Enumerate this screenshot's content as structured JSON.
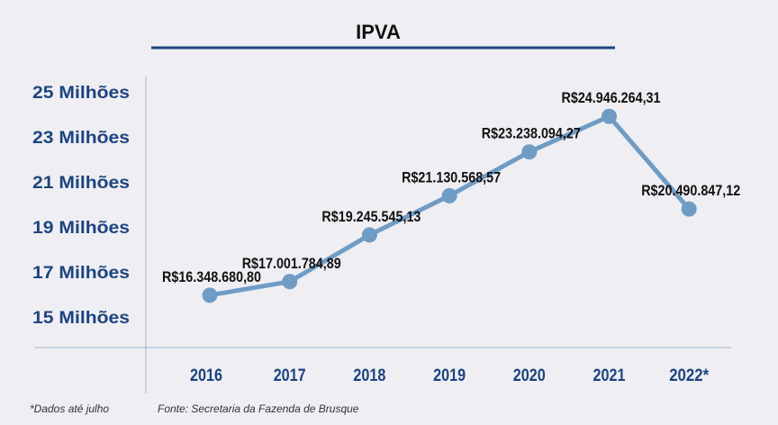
{
  "chart_data": {
    "type": "line",
    "title": "IPVA",
    "xlabel": "",
    "ylabel": "",
    "categories": [
      "2016",
      "2017",
      "2018",
      "2019",
      "2020",
      "2021",
      "2022*"
    ],
    "series": [
      {
        "name": "IPVA",
        "values": [
          16348680.8,
          17001784.89,
          19245545.13,
          21130568.57,
          23238094.27,
          24946264.31,
          20490847.12
        ]
      }
    ],
    "data_labels": [
      "R$16.348.680,80",
      "R$17.001.784,89",
      "R$19.245.545,13",
      "R$21.130.568,57",
      "R$23.238.094,27",
      "R$24.946.264,31",
      "R$20.490.847,12"
    ],
    "y_ticks": [
      {
        "value": 25000000,
        "label": "25 Milhões"
      },
      {
        "value": 23000000,
        "label": "23 Milhões"
      },
      {
        "value": 21000000,
        "label": "21 Milhões"
      },
      {
        "value": 19000000,
        "label": "19 Milhões"
      },
      {
        "value": 17000000,
        "label": "17 Milhões"
      },
      {
        "value": 15000000,
        "label": "15 Milhões"
      }
    ],
    "ylim": [
      15000000,
      25000000
    ],
    "grid": false,
    "line_color": "#6f9cc5",
    "accent_color": "#1c447f",
    "footnote": "*Dados até julho",
    "source": "Fonte: Secretaria da Fazenda de Brusque"
  }
}
